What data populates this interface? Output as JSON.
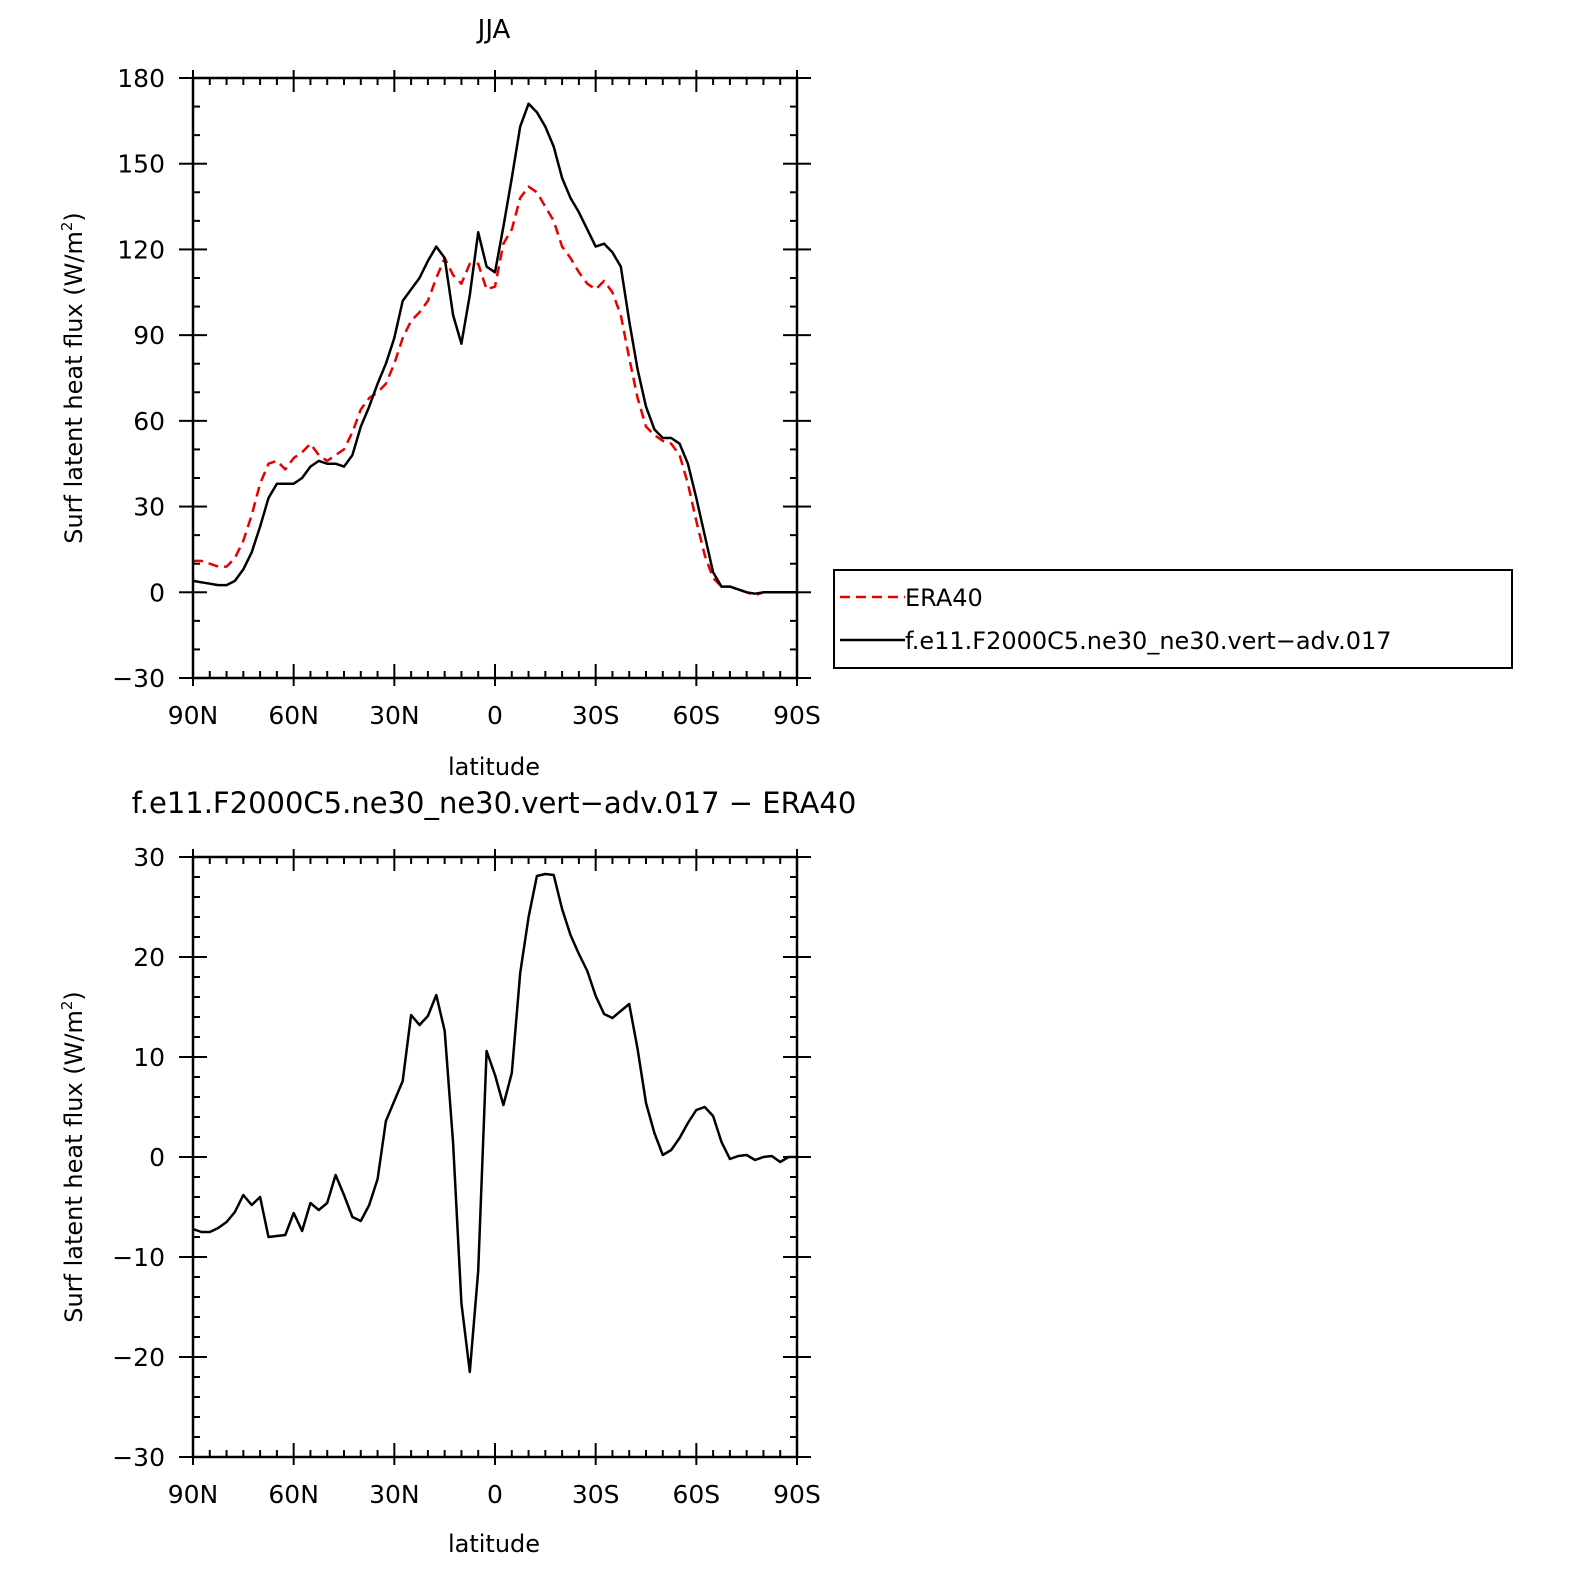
{
  "chart_data": [
    {
      "type": "line",
      "title": "JJA",
      "xlabel": "latitude",
      "ylabel": "Surf latent heat flux (W/m",
      "ylabel_sup": "2",
      "ylabel_close": ")",
      "xlim": [
        90,
        -90
      ],
      "ylim": [
        -30,
        180
      ],
      "xticks": [
        {
          "x": 90,
          "label": "90N"
        },
        {
          "x": 60,
          "label": "60N"
        },
        {
          "x": 30,
          "label": "30N"
        },
        {
          "x": 0,
          "label": "0"
        },
        {
          "x": -30,
          "label": "30S"
        },
        {
          "x": -60,
          "label": "60S"
        },
        {
          "x": -90,
          "label": "90S"
        }
      ],
      "yticks": [
        {
          "y": 180,
          "label": "180"
        },
        {
          "y": 150,
          "label": "150"
        },
        {
          "y": 120,
          "label": "120"
        },
        {
          "y": 90,
          "label": "90"
        },
        {
          "y": 60,
          "label": "60"
        },
        {
          "y": 30,
          "label": "30"
        },
        {
          "y": 0,
          "label": "0"
        },
        {
          "y": -30,
          "label": "−30"
        }
      ],
      "legend": "right",
      "series": [
        {
          "name": "ERA40",
          "color": "#e60000",
          "dash": "dashed",
          "x": [
            90,
            87.5,
            85,
            82.5,
            80,
            77.5,
            75,
            72.5,
            70,
            67.5,
            65,
            62.5,
            60,
            57.5,
            55,
            52.5,
            50,
            47.5,
            45,
            42.5,
            40,
            37.5,
            35,
            32.5,
            30,
            27.5,
            25,
            22.5,
            20,
            17.5,
            15,
            12.5,
            10,
            7.5,
            5,
            2.5,
            0,
            -2.5,
            -5,
            -7.5,
            -10,
            -12.5,
            -15,
            -17.5,
            -20,
            -22.5,
            -25,
            -27.5,
            -30,
            -32.5,
            -35,
            -37.5,
            -40,
            -42.5,
            -45,
            -47.5,
            -50,
            -52.5,
            -55,
            -57.5,
            -60,
            -62.5,
            -65,
            -67.5,
            -70,
            -72.5,
            -75,
            -77.5,
            -80,
            -82.5,
            -85,
            -87.5,
            -90
          ],
          "y": [
            11,
            11,
            10,
            9,
            9,
            12,
            18,
            27,
            38,
            45,
            46,
            43,
            47,
            49,
            52,
            48,
            46,
            48,
            50,
            56,
            64,
            68,
            70,
            73,
            80,
            89,
            95,
            98,
            102,
            110,
            117,
            111,
            108,
            115,
            115,
            106,
            107,
            122,
            127,
            138,
            142,
            140,
            135,
            130,
            121,
            117,
            112,
            108,
            106,
            109,
            105,
            97,
            82,
            68,
            58,
            55,
            53,
            52,
            48,
            38,
            25,
            13,
            5,
            2,
            2,
            1,
            0,
            -1,
            0,
            0,
            0,
            0,
            0
          ]
        },
        {
          "name": "f.e11.F2000C5.ne30_ne30.vert−adv.017",
          "color": "#000000",
          "dash": "solid",
          "x": [
            90,
            87.5,
            85,
            82.5,
            80,
            77.5,
            75,
            72.5,
            70,
            67.5,
            65,
            62.5,
            60,
            57.5,
            55,
            52.5,
            50,
            47.5,
            45,
            42.5,
            40,
            37.5,
            35,
            32.5,
            30,
            27.5,
            25,
            22.5,
            20,
            17.5,
            15,
            12.5,
            10,
            7.5,
            5,
            2.5,
            0,
            -2.5,
            -5,
            -7.5,
            -10,
            -12.5,
            -15,
            -17.5,
            -20,
            -22.5,
            -25,
            -27.5,
            -30,
            -32.5,
            -35,
            -37.5,
            -40,
            -42.5,
            -45,
            -47.5,
            -50,
            -52.5,
            -55,
            -57.5,
            -60,
            -62.5,
            -65,
            -67.5,
            -70,
            -72.5,
            -75,
            -77.5,
            -80,
            -82.5,
            -85,
            -87.5,
            -90
          ],
          "y": [
            4,
            3.5,
            3,
            2.5,
            2.5,
            4,
            8,
            14,
            23,
            33,
            38,
            38,
            38,
            40,
            44,
            46,
            45,
            45,
            44,
            48,
            58,
            65,
            73,
            80,
            89,
            102,
            106,
            110,
            116,
            121,
            117,
            97,
            87,
            104,
            126,
            114,
            112,
            128,
            145,
            163,
            171,
            168,
            163,
            156,
            145,
            138,
            133,
            127,
            121,
            122,
            119,
            114,
            95,
            78,
            65,
            57,
            54,
            54,
            52,
            45,
            33,
            20,
            7,
            2,
            2,
            1,
            0,
            -0.5,
            0,
            0,
            0,
            0,
            0
          ]
        }
      ]
    },
    {
      "type": "line",
      "title": "f.e11.F2000C5.ne30_ne30.vert−adv.017 − ERA40",
      "xlabel": "latitude",
      "ylabel": "Surf latent heat flux (W/m",
      "ylabel_sup": "2",
      "ylabel_close": ")",
      "xlim": [
        90,
        -90
      ],
      "ylim": [
        -30,
        30
      ],
      "xticks": [
        {
          "x": 90,
          "label": "90N"
        },
        {
          "x": 60,
          "label": "60N"
        },
        {
          "x": 30,
          "label": "30N"
        },
        {
          "x": 0,
          "label": "0"
        },
        {
          "x": -30,
          "label": "30S"
        },
        {
          "x": -60,
          "label": "60S"
        },
        {
          "x": -90,
          "label": "90S"
        }
      ],
      "yticks": [
        {
          "y": 30,
          "label": "30"
        },
        {
          "y": 20,
          "label": "20"
        },
        {
          "y": 10,
          "label": "10"
        },
        {
          "y": 0,
          "label": "0"
        },
        {
          "y": -10,
          "label": "−10"
        },
        {
          "y": -20,
          "label": "−20"
        },
        {
          "y": -30,
          "label": "−30"
        }
      ],
      "series": [
        {
          "color": "#000000",
          "dash": "solid",
          "x": [
            90,
            87.5,
            85,
            82.5,
            80,
            77.5,
            75,
            72.5,
            70,
            67.5,
            65,
            62.5,
            60,
            57.5,
            55,
            52.5,
            50,
            47.5,
            45,
            42.5,
            40,
            37.5,
            35,
            32.5,
            30,
            27.5,
            25,
            22.5,
            20,
            17.5,
            15,
            12.5,
            10,
            7.5,
            5,
            2.5,
            0,
            -2.5,
            -5,
            -7.5,
            -10,
            -12.5,
            -15,
            -17.5,
            -20,
            -22.5,
            -25,
            -27.5,
            -30,
            -32.5,
            -35,
            -37.5,
            -40,
            -42.5,
            -45,
            -47.5,
            -50,
            -52.5,
            -55,
            -57.5,
            -60,
            -62.5,
            -65,
            -67.5,
            -70,
            -72.5,
            -75,
            -77.5,
            -80,
            -82.5,
            -85,
            -87.5,
            -90
          ],
          "y": [
            -7.2,
            -7.5,
            -7.5,
            -7.1,
            -6.5,
            -5.5,
            -3.8,
            -4.8,
            -4.0,
            -8.0,
            -7.9,
            -7.8,
            -5.6,
            -7.4,
            -4.6,
            -5.3,
            -4.6,
            -1.8,
            -3.8,
            -6.0,
            -6.4,
            -4.8,
            -2.2,
            3.6,
            5.6,
            7.6,
            14.2,
            13.2,
            14.1,
            16.2,
            12.6,
            1.4,
            -14.6,
            -21.5,
            -11.4,
            10.6,
            8.2,
            5.2,
            8.4,
            18.4,
            24.0,
            28.1,
            28.3,
            28.2,
            24.8,
            22.2,
            20.3,
            18.6,
            16.1,
            14.3,
            13.9,
            14.6,
            15.3,
            10.8,
            5.4,
            2.4,
            0.2,
            0.7,
            1.9,
            3.4,
            4.7,
            5.0,
            4.1,
            1.5,
            -0.2,
            0.1,
            0.2,
            -0.3,
            0,
            0.1,
            -0.5,
            0,
            0
          ]
        }
      ]
    }
  ]
}
